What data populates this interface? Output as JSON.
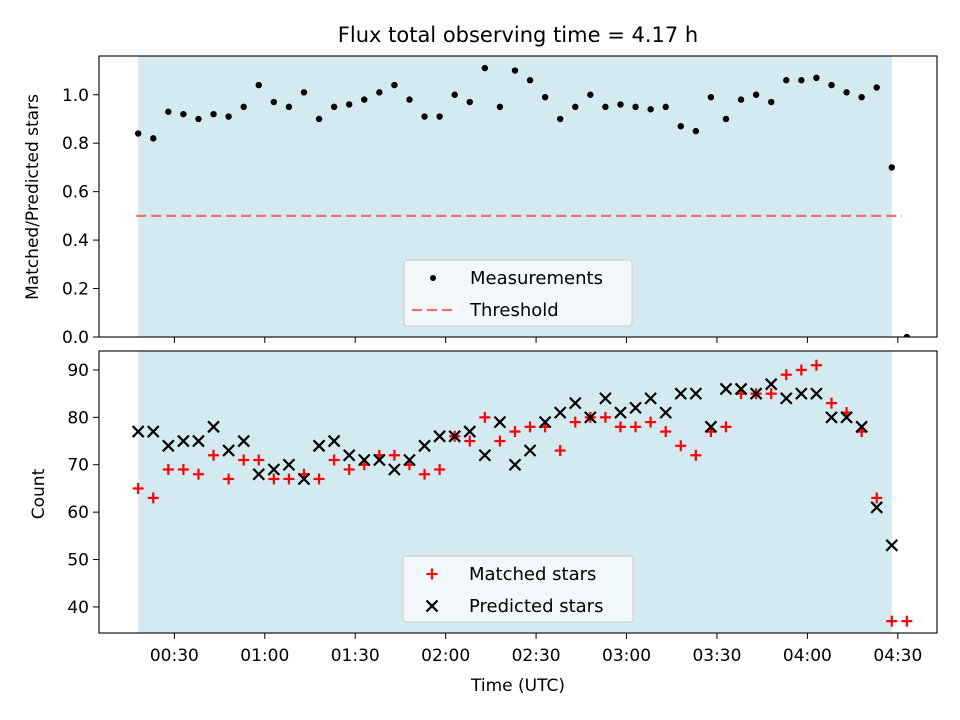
{
  "chart_data": [
    {
      "type": "scatter",
      "title": "Flux total observing time = 4.17 h",
      "ylabel": "Matched/Predicted stars",
      "xlabel": "",
      "ylim": [
        0,
        1.16
      ],
      "yticks": [
        "0.0",
        "0.2",
        "0.4",
        "0.6",
        "0.8",
        "1.0"
      ],
      "shaded_region": {
        "x_start": "00:18",
        "x_end": "04:28",
        "color": "#d3eaf0"
      },
      "threshold": {
        "name": "Threshold",
        "value": 0.5,
        "color": "#f07070",
        "style": "dashed"
      },
      "legend": {
        "placement": "bottom-center"
      },
      "series": [
        {
          "name": "Measurements",
          "marker": "dot",
          "color": "#000000",
          "x": [
            "00:18",
            "00:23",
            "00:28",
            "00:33",
            "00:38",
            "00:43",
            "00:48",
            "00:53",
            "00:58",
            "01:03",
            "01:08",
            "01:13",
            "01:18",
            "01:23",
            "01:28",
            "01:33",
            "01:38",
            "01:43",
            "01:48",
            "01:53",
            "01:58",
            "02:03",
            "02:08",
            "02:13",
            "02:18",
            "02:23",
            "02:28",
            "02:33",
            "02:38",
            "02:43",
            "02:48",
            "02:53",
            "02:58",
            "03:03",
            "03:08",
            "03:13",
            "03:18",
            "03:23",
            "03:28",
            "03:33",
            "03:38",
            "03:43",
            "03:48",
            "03:53",
            "03:58",
            "04:03",
            "04:08",
            "04:13",
            "04:18",
            "04:23",
            "04:28",
            "04:33"
          ],
          "y": [
            0.84,
            0.82,
            0.93,
            0.92,
            0.9,
            0.92,
            0.91,
            0.95,
            1.04,
            0.97,
            0.95,
            1.01,
            0.9,
            0.95,
            0.96,
            0.98,
            1.01,
            1.04,
            0.98,
            0.91,
            0.91,
            1.0,
            0.97,
            1.11,
            0.95,
            1.1,
            1.06,
            0.99,
            0.9,
            0.95,
            1.0,
            0.95,
            0.96,
            0.95,
            0.94,
            0.95,
            0.87,
            0.85,
            0.99,
            0.9,
            0.98,
            1.0,
            0.97,
            1.06,
            1.06,
            1.07,
            1.04,
            1.01,
            0.99,
            1.03,
            0.7,
            0.0
          ]
        }
      ]
    },
    {
      "type": "scatter",
      "title": "",
      "ylabel": "Count",
      "xlabel": "Time (UTC)",
      "ylim": [
        34.5,
        94
      ],
      "yticks": [
        "40",
        "50",
        "60",
        "70",
        "80",
        "90"
      ],
      "xticks": [
        "00:30",
        "01:00",
        "01:30",
        "02:00",
        "02:30",
        "03:00",
        "03:30",
        "04:00",
        "04:30"
      ],
      "xlim": [
        "00:05",
        "04:43"
      ],
      "legend": {
        "placement": "bottom-center"
      },
      "series": [
        {
          "name": "Matched stars",
          "marker": "plus",
          "color": "#ff0000",
          "x": [
            "00:18",
            "00:23",
            "00:28",
            "00:33",
            "00:38",
            "00:43",
            "00:48",
            "00:53",
            "00:58",
            "01:03",
            "01:08",
            "01:13",
            "01:18",
            "01:23",
            "01:28",
            "01:33",
            "01:38",
            "01:43",
            "01:48",
            "01:53",
            "01:58",
            "02:03",
            "02:08",
            "02:13",
            "02:18",
            "02:23",
            "02:28",
            "02:33",
            "02:38",
            "02:43",
            "02:48",
            "02:53",
            "02:58",
            "03:03",
            "03:08",
            "03:13",
            "03:18",
            "03:23",
            "03:28",
            "03:33",
            "03:38",
            "03:43",
            "03:48",
            "03:53",
            "03:58",
            "04:03",
            "04:08",
            "04:13",
            "04:18",
            "04:23",
            "04:28",
            "04:33"
          ],
          "y": [
            65,
            63,
            69,
            69,
            68,
            72,
            67,
            71,
            71,
            67,
            67,
            68,
            67,
            71,
            69,
            70,
            72,
            72,
            70,
            68,
            69,
            76,
            75,
            80,
            75,
            77,
            78,
            78,
            73,
            79,
            80,
            80,
            78,
            78,
            79,
            77,
            74,
            72,
            77,
            78,
            85,
            85,
            85,
            89,
            90,
            91,
            83,
            81,
            77,
            63,
            37,
            37
          ]
        },
        {
          "name": "Predicted stars",
          "marker": "x",
          "color": "#000000",
          "x": [
            "00:18",
            "00:23",
            "00:28",
            "00:33",
            "00:38",
            "00:43",
            "00:48",
            "00:53",
            "00:58",
            "01:03",
            "01:08",
            "01:13",
            "01:18",
            "01:23",
            "01:28",
            "01:33",
            "01:38",
            "01:43",
            "01:48",
            "01:53",
            "01:58",
            "02:03",
            "02:08",
            "02:13",
            "02:18",
            "02:23",
            "02:28",
            "02:33",
            "02:38",
            "02:43",
            "02:48",
            "02:53",
            "02:58",
            "03:03",
            "03:08",
            "03:13",
            "03:18",
            "03:23",
            "03:28",
            "03:33",
            "03:38",
            "03:43",
            "03:48",
            "03:53",
            "03:58",
            "04:03",
            "04:08",
            "04:13",
            "04:18",
            "04:23",
            "04:28"
          ],
          "y": [
            77,
            77,
            74,
            75,
            75,
            78,
            73,
            75,
            68,
            69,
            70,
            67,
            74,
            75,
            72,
            71,
            71,
            69,
            71,
            74,
            76,
            76,
            77,
            72,
            79,
            70,
            73,
            79,
            81,
            83,
            80,
            84,
            81,
            82,
            84,
            81,
            85,
            85,
            78,
            86,
            86,
            85,
            87,
            84,
            85,
            85,
            80,
            80,
            78,
            61,
            53
          ]
        }
      ]
    }
  ]
}
